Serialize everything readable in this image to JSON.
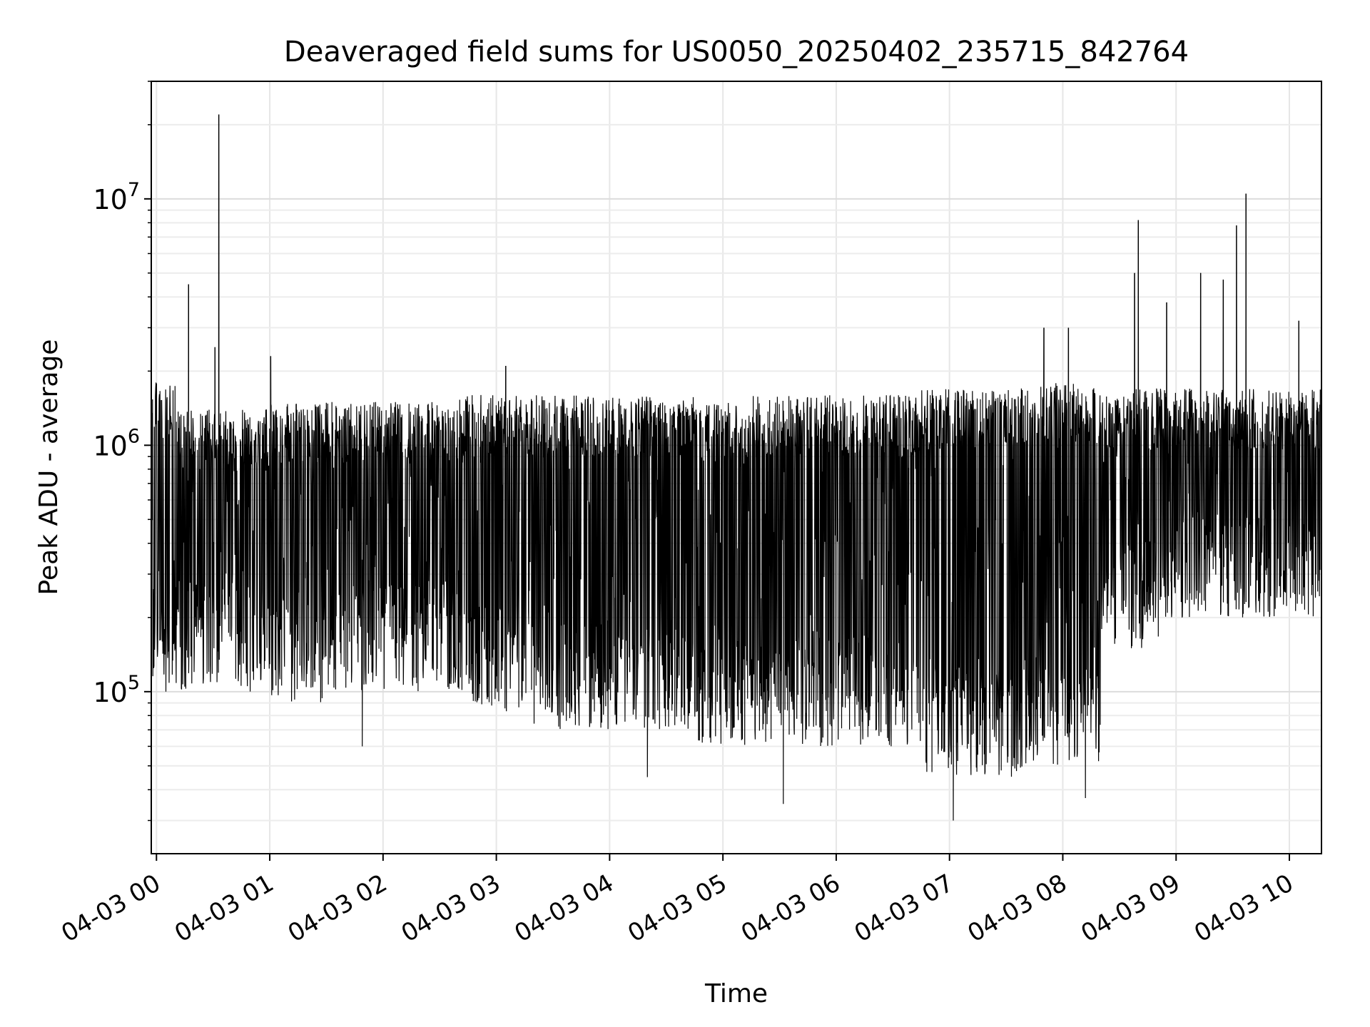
{
  "chart_data": {
    "type": "line",
    "title": "Deaveraged field sums for US0050_20250402_235715_842764",
    "xlabel": "Time",
    "ylabel": "Peak ADU - average",
    "yscale": "log",
    "ylim": [
      22000,
      30000000
    ],
    "xlim": [
      "2025-04-02 23:57:15",
      "2025-04-03 10:17:00"
    ],
    "grid": true,
    "x_tick_labels": [
      "04-03 00",
      "04-03 01",
      "04-03 02",
      "04-03 03",
      "04-03 04",
      "04-03 05",
      "04-03 06",
      "04-03 07",
      "04-03 08",
      "04-03 09",
      "04-03 10"
    ],
    "x_ticks": [
      "2025-04-03 00:00",
      "2025-04-03 01:00",
      "2025-04-03 02:00",
      "2025-04-03 03:00",
      "2025-04-03 04:00",
      "2025-04-03 05:00",
      "2025-04-03 06:00",
      "2025-04-03 07:00",
      "2025-04-03 08:00",
      "2025-04-03 09:00",
      "2025-04-03 10:00"
    ],
    "y_ticks": [
      100000,
      1000000,
      10000000
    ],
    "y_tick_labels": [
      {
        "base": "10",
        "exp": "5"
      },
      {
        "base": "10",
        "exp": "6"
      },
      {
        "base": "10",
        "exp": "7"
      }
    ],
    "series": [
      {
        "color": "#000000",
        "segments": [
          {
            "start": "2025-04-02 23:57:20",
            "end": "2025-04-03 00:10:00",
            "low": 100000,
            "high": 1800000
          },
          {
            "start": "2025-04-03 00:10:00",
            "end": "2025-04-03 01:00:00",
            "low": 100000,
            "high": 1400000
          },
          {
            "start": "2025-04-03 01:00:00",
            "end": "2025-04-03 01:28:00",
            "low": 90000,
            "high": 1500000
          },
          {
            "start": "2025-04-03 01:28:00",
            "end": "2025-04-03 02:40:00",
            "low": 100000,
            "high": 1500000
          },
          {
            "start": "2025-04-03 02:40:00",
            "end": "2025-04-03 03:20:00",
            "low": 80000,
            "high": 1600000
          },
          {
            "start": "2025-04-03 03:20:00",
            "end": "2025-04-03 04:45:00",
            "low": 70000,
            "high": 1600000
          },
          {
            "start": "2025-04-03 04:45:00",
            "end": "2025-04-03 05:15:00",
            "low": 60000,
            "high": 1500000
          },
          {
            "start": "2025-04-03 05:15:00",
            "end": "2025-04-03 06:45:00",
            "low": 60000,
            "high": 1600000
          },
          {
            "start": "2025-04-03 06:45:00",
            "end": "2025-04-03 07:40:00",
            "low": 45000,
            "high": 1700000
          },
          {
            "start": "2025-04-03 07:40:00",
            "end": "2025-04-03 08:20:00",
            "low": 50000,
            "high": 1800000
          },
          {
            "start": "2025-04-03 08:20:00",
            "end": "2025-04-03 09:00:00",
            "low": 150000,
            "high": 1700000
          },
          {
            "start": "2025-04-03 09:00:00",
            "end": "2025-04-03 10:16:30",
            "low": 200000,
            "high": 1700000
          }
        ],
        "spikes": [
          {
            "time": "2025-04-03 00:17:00",
            "value": 4500000
          },
          {
            "time": "2025-04-03 00:33:00",
            "value": 22000000
          },
          {
            "time": "2025-04-03 00:31:00",
            "value": 2500000
          },
          {
            "time": "2025-04-03 01:00:30",
            "value": 2300000
          },
          {
            "time": "2025-04-03 03:05:00",
            "value": 2100000
          },
          {
            "time": "2025-04-03 07:50:00",
            "value": 3000000
          },
          {
            "time": "2025-04-03 08:03:00",
            "value": 3000000
          },
          {
            "time": "2025-04-03 08:38:00",
            "value": 5000000
          },
          {
            "time": "2025-04-03 08:40:00",
            "value": 8200000
          },
          {
            "time": "2025-04-03 08:55:00",
            "value": 3800000
          },
          {
            "time": "2025-04-03 09:13:00",
            "value": 5000000
          },
          {
            "time": "2025-04-03 09:25:00",
            "value": 4700000
          },
          {
            "time": "2025-04-03 09:32:00",
            "value": 7800000
          },
          {
            "time": "2025-04-03 09:37:00",
            "value": 10500000
          },
          {
            "time": "2025-04-03 10:05:00",
            "value": 3200000
          },
          {
            "time": "2025-04-03 00:05:00",
            "value": 100000
          },
          {
            "time": "2025-04-03 01:49:00",
            "value": 60000
          },
          {
            "time": "2025-04-03 04:20:00",
            "value": 45000
          },
          {
            "time": "2025-04-03 05:32:00",
            "value": 35000
          },
          {
            "time": "2025-04-03 07:02:00",
            "value": 30000
          },
          {
            "time": "2025-04-03 08:12:00",
            "value": 37000
          }
        ]
      }
    ]
  }
}
